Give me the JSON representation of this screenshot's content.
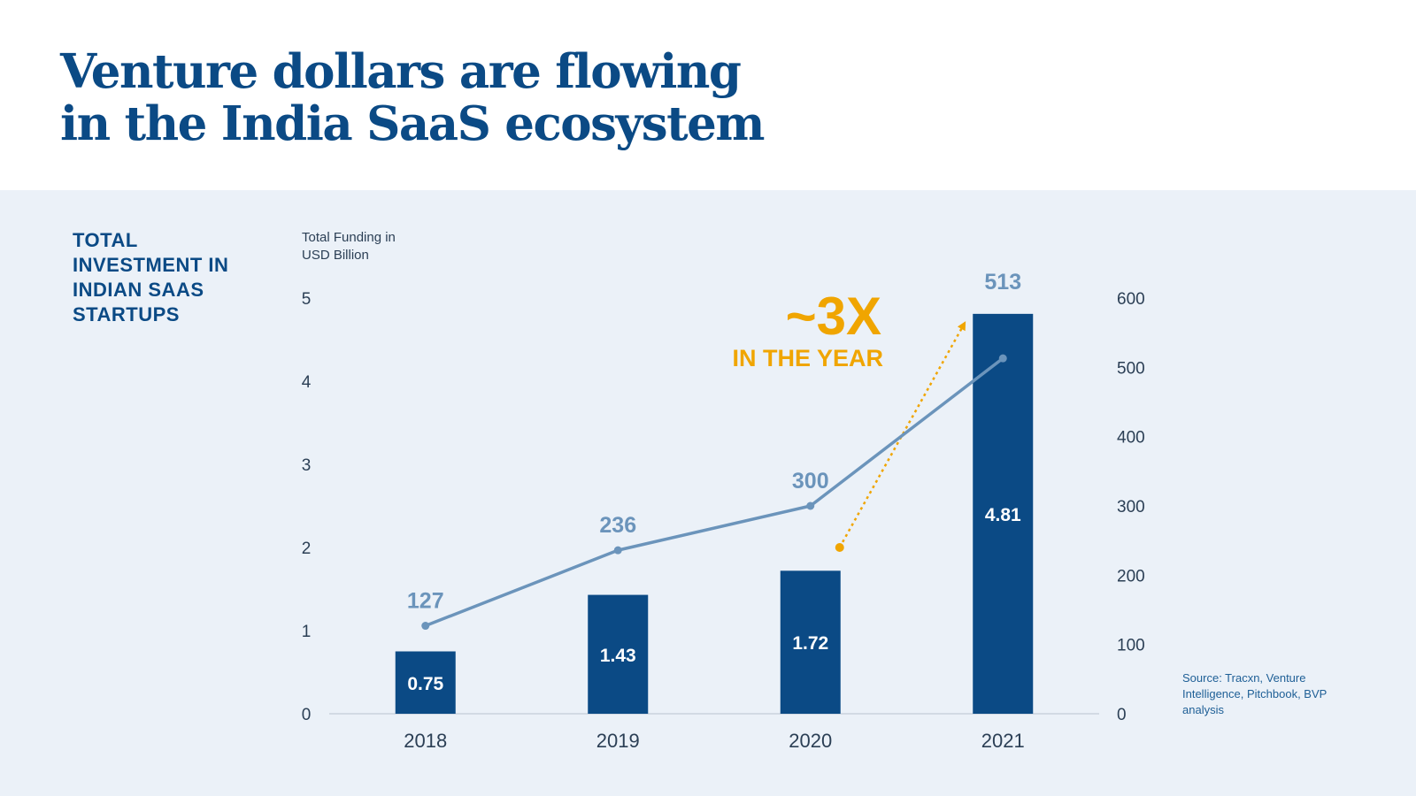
{
  "header": {
    "title_line1": "Venture dollars are flowing",
    "title_line2": "in the India SaaS ecosystem"
  },
  "side_label": [
    "TOTAL",
    "INVESTMENT IN",
    "INDIAN SAAS",
    "STARTUPS"
  ],
  "axis_title": [
    "Total Funding in",
    "USD Billion"
  ],
  "source": [
    "Source: Tracxn, Venture",
    "Intelligence, Pitchbook, BVP",
    "analysis"
  ],
  "callout": {
    "big": "~3X",
    "small": "IN THE YEAR"
  },
  "colors": {
    "title": "#0b4a85",
    "bar": "#0b4a85",
    "line": "#6b94bb",
    "accent": "#f0a500",
    "panel": "#ebf1f8"
  },
  "chart_data": {
    "type": "bar",
    "categories": [
      "2018",
      "2019",
      "2020",
      "2021"
    ],
    "series": [
      {
        "values": [
          0.75,
          1.43,
          1.72,
          4.81
        ],
        "type": "bar",
        "axis": "left"
      },
      {
        "values": [
          127,
          236,
          300,
          513
        ],
        "type": "line",
        "axis": "right"
      }
    ],
    "ylabel": "Total Funding in USD Billion",
    "ylim": [
      0,
      5
    ],
    "yticks": [
      "0",
      "1",
      "2",
      "3",
      "4",
      "5"
    ],
    "y2lim": [
      0,
      600
    ],
    "y2ticks": [
      "0",
      "100",
      "200",
      "300",
      "400",
      "500",
      "600"
    ],
    "bar_labels": [
      "0.75",
      "1.43",
      "1.72",
      "4.81"
    ],
    "line_labels": [
      "127",
      "236",
      "300",
      "513"
    ],
    "grid": false
  }
}
